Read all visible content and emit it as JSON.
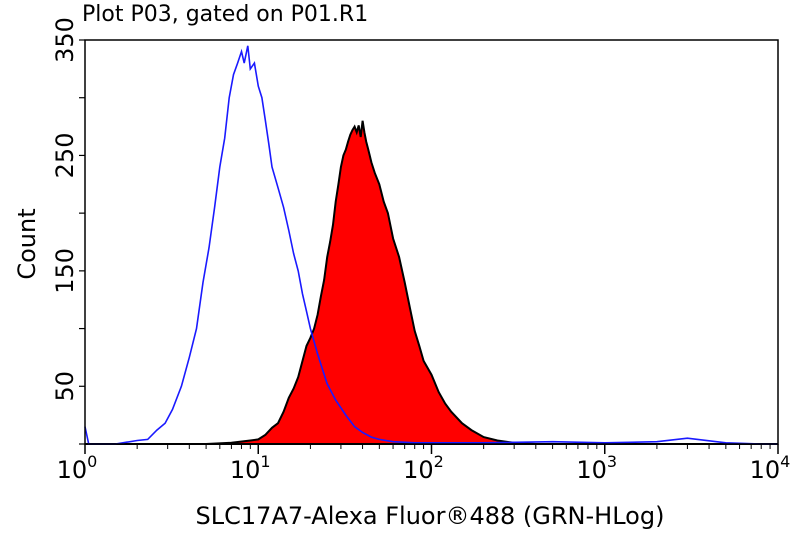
{
  "chart_data": {
    "type": "area",
    "title": "Plot P03, gated on P01.R1",
    "xlabel": "SLC17A7-Alexa Fluor®488 (GRN-HLog)",
    "ylabel": "Count",
    "xscale": "log",
    "xlim": [
      1,
      10000
    ],
    "ylim": [
      0,
      350
    ],
    "grid": false,
    "x_ticks": [
      {
        "base": "10",
        "exp": "0"
      },
      {
        "base": "10",
        "exp": "1"
      },
      {
        "base": "10",
        "exp": "2"
      },
      {
        "base": "10",
        "exp": "3"
      },
      {
        "base": "10",
        "exp": "4"
      }
    ],
    "y_tick_labels": [
      "50",
      "150",
      "250",
      "350"
    ],
    "y_label_values": [
      50,
      150,
      250,
      350
    ],
    "y_minor_values": [
      0,
      100,
      200,
      300
    ],
    "series": [
      {
        "style": "outline",
        "color": "#1a1aff",
        "points": [
          [
            1.0,
            15
          ],
          [
            1.05,
            0
          ],
          [
            1.5,
            0
          ],
          [
            2.0,
            3
          ],
          [
            2.3,
            4
          ],
          [
            2.6,
            12
          ],
          [
            2.9,
            18
          ],
          [
            3.2,
            30
          ],
          [
            3.6,
            50
          ],
          [
            4.0,
            75
          ],
          [
            4.4,
            100
          ],
          [
            4.8,
            140
          ],
          [
            5.2,
            170
          ],
          [
            5.6,
            205
          ],
          [
            6.0,
            240
          ],
          [
            6.4,
            265
          ],
          [
            6.8,
            300
          ],
          [
            7.2,
            320
          ],
          [
            7.6,
            330
          ],
          [
            8.0,
            340
          ],
          [
            8.3,
            330
          ],
          [
            8.7,
            345
          ],
          [
            9.0,
            325
          ],
          [
            9.5,
            330
          ],
          [
            10.0,
            310
          ],
          [
            10.5,
            300
          ],
          [
            11.0,
            280
          ],
          [
            11.5,
            260
          ],
          [
            12.0,
            240
          ],
          [
            13.0,
            222
          ],
          [
            14.0,
            205
          ],
          [
            15.0,
            185
          ],
          [
            16.0,
            165
          ],
          [
            17.0,
            150
          ],
          [
            18.0,
            130
          ],
          [
            19.0,
            115
          ],
          [
            20.0,
            100
          ],
          [
            22.0,
            78
          ],
          [
            25.0,
            52
          ],
          [
            28.0,
            38
          ],
          [
            32.0,
            25
          ],
          [
            36.0,
            15
          ],
          [
            40.0,
            10
          ],
          [
            45.0,
            6
          ],
          [
            50.0,
            4
          ],
          [
            60.0,
            2
          ],
          [
            80.0,
            1
          ],
          [
            100,
            1
          ],
          [
            200,
            1
          ],
          [
            500,
            2
          ],
          [
            1000,
            1
          ],
          [
            2000,
            2
          ],
          [
            3000,
            5
          ],
          [
            5000,
            1
          ],
          [
            8000,
            0
          ],
          [
            10000,
            0
          ]
        ]
      },
      {
        "style": "filled",
        "color": "#ff0000",
        "stroke": "#000000",
        "points": [
          [
            1.0,
            0
          ],
          [
            3.0,
            0
          ],
          [
            5.0,
            0
          ],
          [
            7.0,
            1
          ],
          [
            9.0,
            3
          ],
          [
            10.0,
            4
          ],
          [
            11.0,
            8
          ],
          [
            12.0,
            14
          ],
          [
            13.0,
            18
          ],
          [
            14.0,
            28
          ],
          [
            15.0,
            40
          ],
          [
            16.0,
            48
          ],
          [
            17.0,
            58
          ],
          [
            18.0,
            72
          ],
          [
            19.0,
            85
          ],
          [
            20.0,
            92
          ],
          [
            21.0,
            100
          ],
          [
            22.0,
            112
          ],
          [
            23.0,
            128
          ],
          [
            24.0,
            142
          ],
          [
            25.0,
            162
          ],
          [
            26.0,
            175
          ],
          [
            27.0,
            190
          ],
          [
            28.0,
            210
          ],
          [
            29.0,
            225
          ],
          [
            30.0,
            240
          ],
          [
            31.0,
            250
          ],
          [
            32.0,
            255
          ],
          [
            33.0,
            262
          ],
          [
            34.0,
            268
          ],
          [
            35.0,
            272
          ],
          [
            36.0,
            275
          ],
          [
            37.0,
            270
          ],
          [
            38.0,
            276
          ],
          [
            39.0,
            266
          ],
          [
            40.0,
            280
          ],
          [
            41.0,
            270
          ],
          [
            42.0,
            262
          ],
          [
            43.0,
            256
          ],
          [
            44.0,
            250
          ],
          [
            45.0,
            244
          ],
          [
            47.0,
            235
          ],
          [
            50.0,
            225
          ],
          [
            53.0,
            210
          ],
          [
            56.0,
            200
          ],
          [
            60.0,
            178
          ],
          [
            65.0,
            162
          ],
          [
            70.0,
            140
          ],
          [
            75.0,
            118
          ],
          [
            80.0,
            98
          ],
          [
            85.0,
            85
          ],
          [
            90.0,
            72
          ],
          [
            100.0,
            60
          ],
          [
            110.0,
            45
          ],
          [
            120.0,
            35
          ],
          [
            130.0,
            28
          ],
          [
            150.0,
            18
          ],
          [
            170.0,
            12
          ],
          [
            200.0,
            6
          ],
          [
            240.0,
            3
          ],
          [
            300.0,
            1
          ],
          [
            400.0,
            0
          ],
          [
            1000.0,
            0
          ],
          [
            10000.0,
            0
          ]
        ]
      }
    ]
  }
}
